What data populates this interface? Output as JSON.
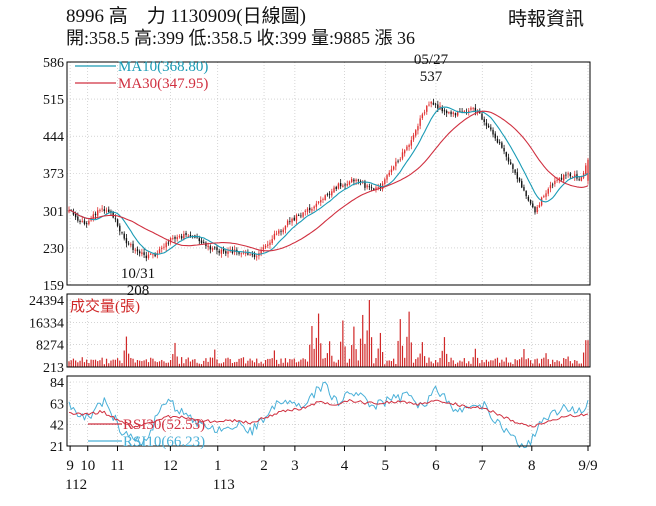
{
  "header": {
    "title": "8996 高　力 1130909(日線圖)",
    "source": "時報資訊",
    "ohlc": "開:358.5 高:399 低:358.5 收:399 量:9885 漲 36"
  },
  "colors": {
    "up": "#e03030",
    "down": "#111111",
    "ma10": "#1a9bb5",
    "ma30": "#d03040",
    "rsi30": "#d03040",
    "rsi10": "#4ab0d8",
    "volume": "#d02828",
    "grid": "#bbbbbb",
    "axis": "#000000"
  },
  "chart_data": [
    {
      "type": "candlestick",
      "panel": "price",
      "ylim": [
        159,
        586
      ],
      "yticks": [
        586,
        515,
        444,
        373,
        301,
        230,
        159
      ],
      "n_points": 236,
      "anchors": [
        [
          0,
          301
        ],
        [
          6,
          285
        ],
        [
          12,
          276
        ],
        [
          18,
          295
        ],
        [
          24,
          305
        ],
        [
          30,
          300
        ],
        [
          36,
          270
        ],
        [
          42,
          240
        ],
        [
          48,
          225
        ],
        [
          56,
          214
        ],
        [
          62,
          216
        ],
        [
          68,
          232
        ],
        [
          74,
          246
        ],
        [
          80,
          250
        ],
        [
          86,
          256
        ],
        [
          92,
          250
        ],
        [
          98,
          238
        ],
        [
          104,
          226
        ],
        [
          112,
          222
        ],
        [
          118,
          224
        ],
        [
          124,
          220
        ],
        [
          130,
          214
        ],
        [
          136,
          217
        ],
        [
          142,
          232
        ],
        [
          148,
          252
        ],
        [
          154,
          266
        ],
        [
          160,
          282
        ],
        [
          166,
          292
        ],
        [
          172,
          300
        ],
        [
          178,
          308
        ],
        [
          184,
          322
        ],
        [
          190,
          340
        ],
        [
          196,
          352
        ],
        [
          202,
          356
        ],
        [
          208,
          360
        ],
        [
          214,
          350
        ],
        [
          220,
          340
        ],
        [
          226,
          346
        ],
        [
          232,
          372
        ],
        [
          238,
          396
        ],
        [
          244,
          420
        ],
        [
          250,
          446
        ],
        [
          256,
          486
        ],
        [
          262,
          508
        ],
        [
          268,
          500
        ],
        [
          274,
          488
        ],
        [
          280,
          484
        ],
        [
          286,
          490
        ],
        [
          292,
          496
        ],
        [
          298,
          484
        ],
        [
          304,
          462
        ],
        [
          310,
          436
        ],
        [
          316,
          408
        ],
        [
          322,
          378
        ],
        [
          328,
          344
        ],
        [
          334,
          318
        ],
        [
          338,
          300
        ],
        [
          342,
          322
        ],
        [
          346,
          340
        ],
        [
          350,
          352
        ],
        [
          356,
          362
        ],
        [
          362,
          372
        ],
        [
          368,
          366
        ],
        [
          372,
          362
        ],
        [
          376,
          399
        ]
      ],
      "last_close": 399,
      "annotations": [
        {
          "label_date": "05/27",
          "label_value": "537",
          "type": "high"
        },
        {
          "label_date": "10/31",
          "label_value": "208",
          "type": "low"
        }
      ],
      "legend": [
        {
          "name": "MA10",
          "value": "MA10(368.80)"
        },
        {
          "name": "MA30",
          "value": "MA30(347.95)"
        }
      ]
    },
    {
      "type": "bar",
      "panel": "volume",
      "title": "成交量(張)",
      "ylim": [
        213,
        24394
      ],
      "yticks": [
        24394,
        16334,
        8274,
        213
      ],
      "spikes": [
        [
          42,
          11200
        ],
        [
          76,
          8900
        ],
        [
          106,
          6500
        ],
        [
          148,
          6200
        ],
        [
          176,
          15000
        ],
        [
          180,
          19500
        ],
        [
          188,
          9500
        ],
        [
          198,
          17000
        ],
        [
          206,
          14800
        ],
        [
          212,
          19000
        ],
        [
          218,
          24394
        ],
        [
          226,
          12500
        ],
        [
          240,
          17500
        ],
        [
          246,
          20200
        ],
        [
          256,
          9200
        ],
        [
          272,
          11000
        ],
        [
          294,
          6800
        ],
        [
          330,
          6700
        ],
        [
          346,
          5200
        ],
        [
          362,
          4000
        ],
        [
          375,
          9885
        ]
      ],
      "last_value": 9885
    },
    {
      "type": "line",
      "panel": "rsi",
      "ylim": [
        21,
        84
      ],
      "yticks": [
        84,
        63,
        42,
        21
      ],
      "series": [
        {
          "name": "RSI30",
          "label": "RSI30(52.53)",
          "last": 52.53
        },
        {
          "name": "RSI10",
          "label": "RSI10(66.23)",
          "last": 66.23
        }
      ],
      "rsi10_anchors": [
        [
          0,
          60
        ],
        [
          12,
          48
        ],
        [
          20,
          58
        ],
        [
          26,
          66
        ],
        [
          32,
          50
        ],
        [
          40,
          32
        ],
        [
          46,
          28
        ],
        [
          52,
          25
        ],
        [
          58,
          34
        ],
        [
          66,
          56
        ],
        [
          72,
          66
        ],
        [
          80,
          55
        ],
        [
          92,
          46
        ],
        [
          100,
          38
        ],
        [
          112,
          40
        ],
        [
          124,
          44
        ],
        [
          132,
          34
        ],
        [
          140,
          48
        ],
        [
          150,
          62
        ],
        [
          160,
          66
        ],
        [
          168,
          58
        ],
        [
          176,
          70
        ],
        [
          184,
          82
        ],
        [
          194,
          64
        ],
        [
          204,
          74
        ],
        [
          212,
          70
        ],
        [
          222,
          60
        ],
        [
          232,
          66
        ],
        [
          244,
          70
        ],
        [
          256,
          60
        ],
        [
          266,
          78
        ],
        [
          274,
          66
        ],
        [
          282,
          54
        ],
        [
          292,
          56
        ],
        [
          300,
          62
        ],
        [
          308,
          46
        ],
        [
          318,
          34
        ],
        [
          326,
          22
        ],
        [
          334,
          24
        ],
        [
          342,
          44
        ],
        [
          352,
          54
        ],
        [
          362,
          60
        ],
        [
          370,
          54
        ],
        [
          376,
          66.23
        ]
      ],
      "rsi30_anchors": [
        [
          0,
          54
        ],
        [
          12,
          52
        ],
        [
          24,
          55
        ],
        [
          36,
          46
        ],
        [
          48,
          40
        ],
        [
          60,
          44
        ],
        [
          72,
          50
        ],
        [
          84,
          49
        ],
        [
          96,
          46
        ],
        [
          108,
          45
        ],
        [
          120,
          46
        ],
        [
          132,
          44
        ],
        [
          144,
          50
        ],
        [
          156,
          56
        ],
        [
          168,
          58
        ],
        [
          180,
          64
        ],
        [
          192,
          62
        ],
        [
          204,
          66
        ],
        [
          216,
          63
        ],
        [
          228,
          64
        ],
        [
          240,
          65
        ],
        [
          252,
          62
        ],
        [
          264,
          66
        ],
        [
          276,
          63
        ],
        [
          288,
          60
        ],
        [
          300,
          58
        ],
        [
          312,
          52
        ],
        [
          324,
          43
        ],
        [
          336,
          40
        ],
        [
          348,
          47
        ],
        [
          360,
          50
        ],
        [
          370,
          52
        ],
        [
          376,
          52.53
        ]
      ]
    }
  ],
  "xaxis": {
    "month_labels": [
      {
        "label": "9",
        "pos": 1
      },
      {
        "label": "10",
        "pos": 17
      },
      {
        "label": "11",
        "pos": 44
      },
      {
        "label": "12",
        "pos": 92
      },
      {
        "label": "1",
        "pos": 135
      },
      {
        "label": "2",
        "pos": 177
      },
      {
        "label": "3",
        "pos": 205
      },
      {
        "label": "4",
        "pos": 250
      },
      {
        "label": "5",
        "pos": 287
      },
      {
        "label": "6",
        "pos": 333
      },
      {
        "label": "7",
        "pos": 375
      },
      {
        "label": "8",
        "pos": 420
      },
      {
        "label": "9/9",
        "pos": 471
      }
    ],
    "year_labels": [
      {
        "label": "112",
        "pos": 1
      },
      {
        "label": "113",
        "pos": 135
      }
    ]
  }
}
